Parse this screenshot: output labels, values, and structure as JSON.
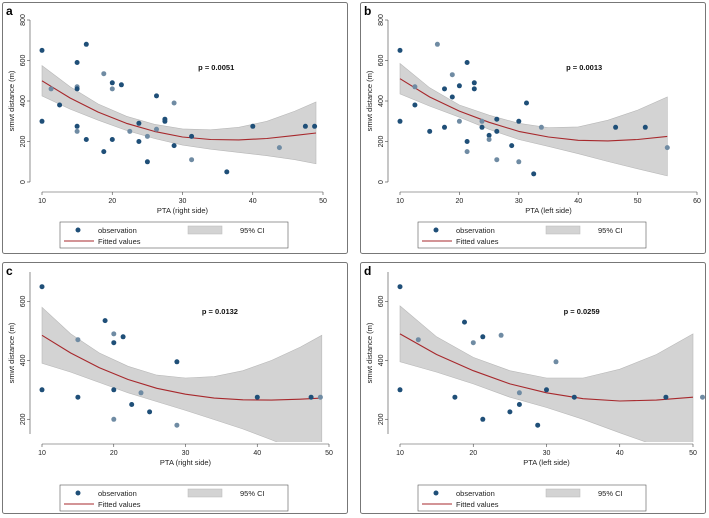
{
  "legend": {
    "observation": "observation",
    "ci": "95% CI",
    "fitted": "Fitted values"
  },
  "colors": {
    "point_dark": "#1f4f78",
    "point_light": "#6f8ba3",
    "ci_fill": "#d3d3d3",
    "ci_edge": "#b8b8b8",
    "fit_line": "#a7282c",
    "frame": "#777777"
  },
  "chart_data": [
    {
      "panel": "a",
      "type": "scatter",
      "xlabel": "PTA (right side)",
      "ylabel": "smwt distance (m)",
      "p_value": "p = 0.0051",
      "xlim": [
        10,
        50
      ],
      "ylim": [
        0,
        800
      ],
      "xticks": [
        "10",
        "20",
        "30",
        "40",
        "50"
      ],
      "yticks": [
        "0",
        "200",
        "400",
        "600",
        "800"
      ],
      "x": [
        10,
        10,
        11.3,
        12.5,
        15,
        15,
        15,
        15,
        15,
        16.3,
        16.3,
        18.8,
        18.8,
        20,
        20,
        20,
        21.3,
        22.5,
        23.8,
        23.8,
        25,
        25,
        26.3,
        26.3,
        27.5,
        27.5,
        28.8,
        28.8,
        31.3,
        31.3,
        36.3,
        40,
        43.8,
        47.5,
        48.8
      ],
      "y": [
        650,
        300,
        460,
        380,
        590,
        470,
        460,
        275,
        250,
        680,
        210,
        535,
        150,
        490,
        460,
        210,
        480,
        250,
        290,
        200,
        225,
        100,
        425,
        260,
        310,
        300,
        390,
        180,
        225,
        110,
        50,
        275,
        170,
        275,
        275
      ],
      "fit": {
        "x": [
          10,
          14,
          18,
          22,
          26,
          30,
          34,
          38,
          42,
          46,
          49
        ],
        "y": [
          500,
          415,
          345,
          290,
          250,
          222,
          210,
          208,
          215,
          230,
          242
        ]
      },
      "ci_upper": [
        575,
        470,
        385,
        325,
        285,
        262,
        258,
        270,
        300,
        350,
        395
      ],
      "ci_lower": [
        425,
        360,
        305,
        255,
        215,
        182,
        162,
        146,
        130,
        110,
        90
      ]
    },
    {
      "panel": "b",
      "type": "scatter",
      "xlabel": "PTA (left side)",
      "ylabel": "smwt distance (m)",
      "p_value": "p = 0.0013",
      "xlim": [
        10,
        60
      ],
      "ylim": [
        0,
        800
      ],
      "xticks": [
        "10",
        "20",
        "30",
        "40",
        "50",
        "60"
      ],
      "yticks": [
        "0",
        "200",
        "400",
        "600",
        "800"
      ],
      "x": [
        10,
        10,
        12.5,
        12.5,
        15,
        16.3,
        17.5,
        17.5,
        18.8,
        18.8,
        20,
        20,
        21.3,
        21.3,
        21.3,
        22.5,
        22.5,
        23.8,
        23.8,
        25,
        25,
        26.3,
        26.3,
        26.3,
        28.8,
        30,
        30,
        31.3,
        32.5,
        33.8,
        46.3,
        51.3,
        55
      ],
      "y": [
        650,
        300,
        470,
        380,
        250,
        680,
        460,
        270,
        530,
        420,
        475,
        300,
        590,
        200,
        150,
        460,
        490,
        300,
        270,
        230,
        210,
        310,
        250,
        110,
        180,
        300,
        100,
        390,
        40,
        270,
        270,
        270,
        170
      ],
      "fit": {
        "x": [
          10,
          15,
          20,
          25,
          30,
          35,
          40,
          45,
          50,
          55
        ],
        "y": [
          510,
          420,
          350,
          295,
          250,
          222,
          206,
          203,
          210,
          225
        ]
      },
      "ci_upper": [
        585,
        465,
        380,
        330,
        290,
        268,
        272,
        305,
        355,
        420
      ],
      "ci_lower": [
        435,
        375,
        320,
        260,
        210,
        176,
        140,
        101,
        65,
        30
      ]
    },
    {
      "panel": "c",
      "type": "scatter",
      "xlabel": "PTA (right side)",
      "ylabel": "smwt distance (m)",
      "p_value": "p = 0.0132",
      "xlim": [
        10,
        50
      ],
      "ylim": [
        150,
        700
      ],
      "xticks": [
        "10",
        "20",
        "30",
        "40",
        "50"
      ],
      "yticks": [
        "200",
        "400",
        "600"
      ],
      "x": [
        10,
        10,
        15,
        15,
        18.8,
        20,
        20,
        20,
        20,
        21.3,
        22.5,
        23.8,
        25,
        28.8,
        28.8,
        40,
        47.5,
        48.8
      ],
      "y": [
        650,
        300,
        470,
        275,
        535,
        490,
        460,
        300,
        200,
        480,
        250,
        290,
        225,
        395,
        180,
        275,
        275,
        275
      ],
      "fit": {
        "x": [
          10,
          14,
          18,
          22,
          26,
          30,
          34,
          38,
          42,
          46,
          49
        ],
        "y": [
          485,
          425,
          375,
          335,
          305,
          285,
          272,
          266,
          265,
          268,
          272
        ]
      },
      "ci_upper": [
        580,
        490,
        425,
        380,
        350,
        340,
        345,
        365,
        400,
        445,
        485
      ],
      "ci_lower": [
        390,
        360,
        325,
        290,
        260,
        230,
        199,
        167,
        130,
        91,
        59
      ]
    },
    {
      "panel": "d",
      "type": "scatter",
      "xlabel": "PTA (left side)",
      "ylabel": "smwt distance (m)",
      "p_value": "p = 0.0259",
      "xlim": [
        10,
        50
      ],
      "ylim": [
        150,
        700
      ],
      "xticks": [
        "10",
        "20",
        "30",
        "40",
        "50"
      ],
      "yticks": [
        "200",
        "400",
        "600"
      ],
      "x": [
        10,
        10,
        12.5,
        17.5,
        18.8,
        20,
        21.3,
        21.3,
        23.8,
        25,
        26.3,
        26.3,
        28.8,
        30,
        31.3,
        33.8,
        46.3,
        51.3
      ],
      "y": [
        650,
        300,
        470,
        275,
        530,
        460,
        480,
        200,
        485,
        225,
        250,
        290,
        180,
        300,
        395,
        275,
        275,
        275
      ],
      "fit": {
        "x": [
          10,
          15,
          20,
          25,
          30,
          35,
          40,
          45,
          50
        ],
        "y": [
          490,
          420,
          365,
          320,
          290,
          270,
          262,
          265,
          275
        ]
      },
      "ci_upper": [
        585,
        480,
        410,
        365,
        340,
        340,
        370,
        420,
        490
      ],
      "ci_lower": [
        395,
        360,
        320,
        275,
        240,
        200,
        154,
        110,
        60
      ]
    }
  ]
}
